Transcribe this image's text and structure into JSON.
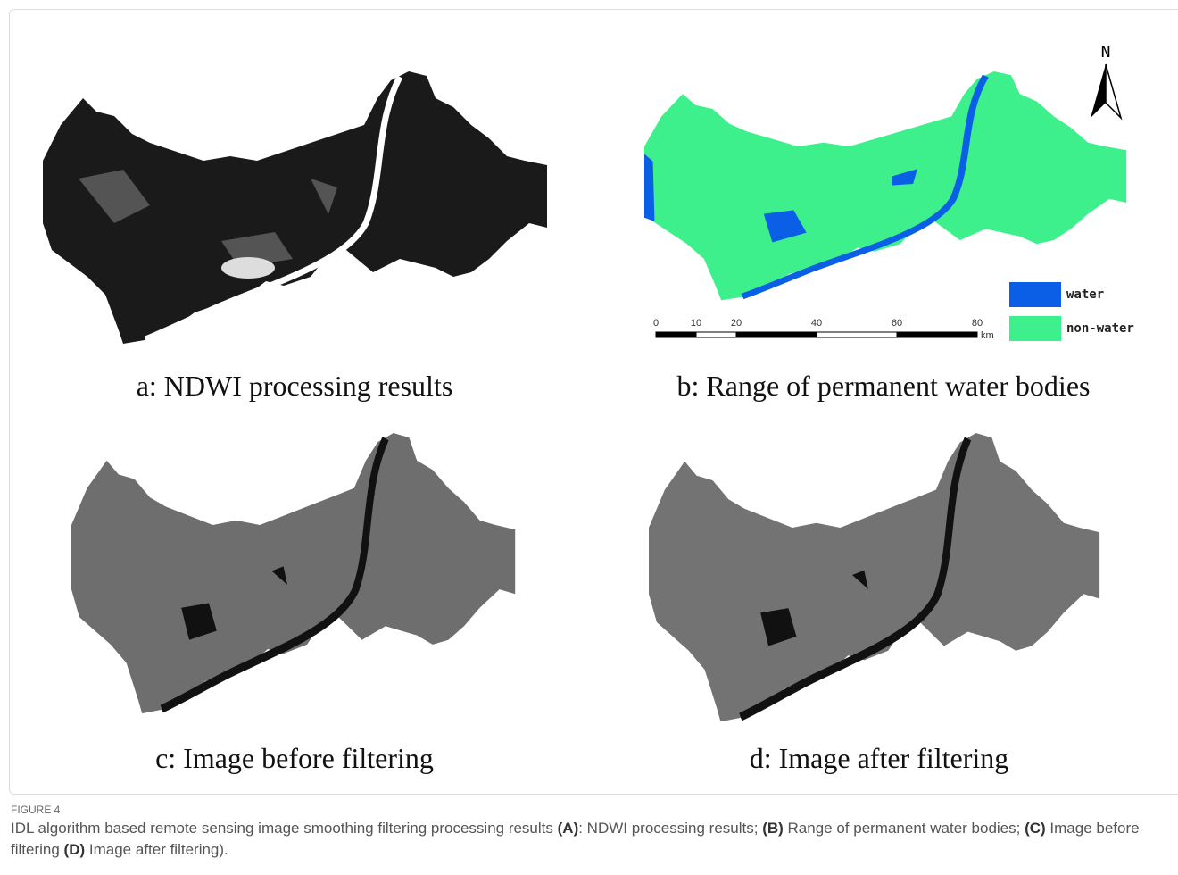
{
  "panels": [
    {
      "caption": "a: NDWI processing results"
    },
    {
      "caption": "b: Range of permanent water bodies",
      "north_label": "N",
      "legend": [
        {
          "name": "water",
          "color": "#0b5fe6"
        },
        {
          "name": "non-water",
          "color": "#3ef08c"
        }
      ],
      "scale_bar": {
        "ticks": [
          0,
          10,
          20,
          40,
          60,
          80
        ],
        "unit": "km"
      }
    },
    {
      "caption": "c: Image before filtering"
    },
    {
      "caption": "d: Image after filtering"
    }
  ],
  "figure": {
    "label": "FIGURE 4",
    "caption": [
      {
        "text": "IDL algorithm based remote sensing image smoothing filtering processing results ",
        "bold": false
      },
      {
        "text": "(A)",
        "bold": true
      },
      {
        "text": ": NDWI processing results; ",
        "bold": false
      },
      {
        "text": "(B)",
        "bold": true
      },
      {
        "text": " Range of permanent water bodies; ",
        "bold": false
      },
      {
        "text": "(C)",
        "bold": true
      },
      {
        "text": " Image before filtering ",
        "bold": false
      },
      {
        "text": "(D)",
        "bold": true
      },
      {
        "text": " Image after filtering).",
        "bold": false
      }
    ]
  }
}
